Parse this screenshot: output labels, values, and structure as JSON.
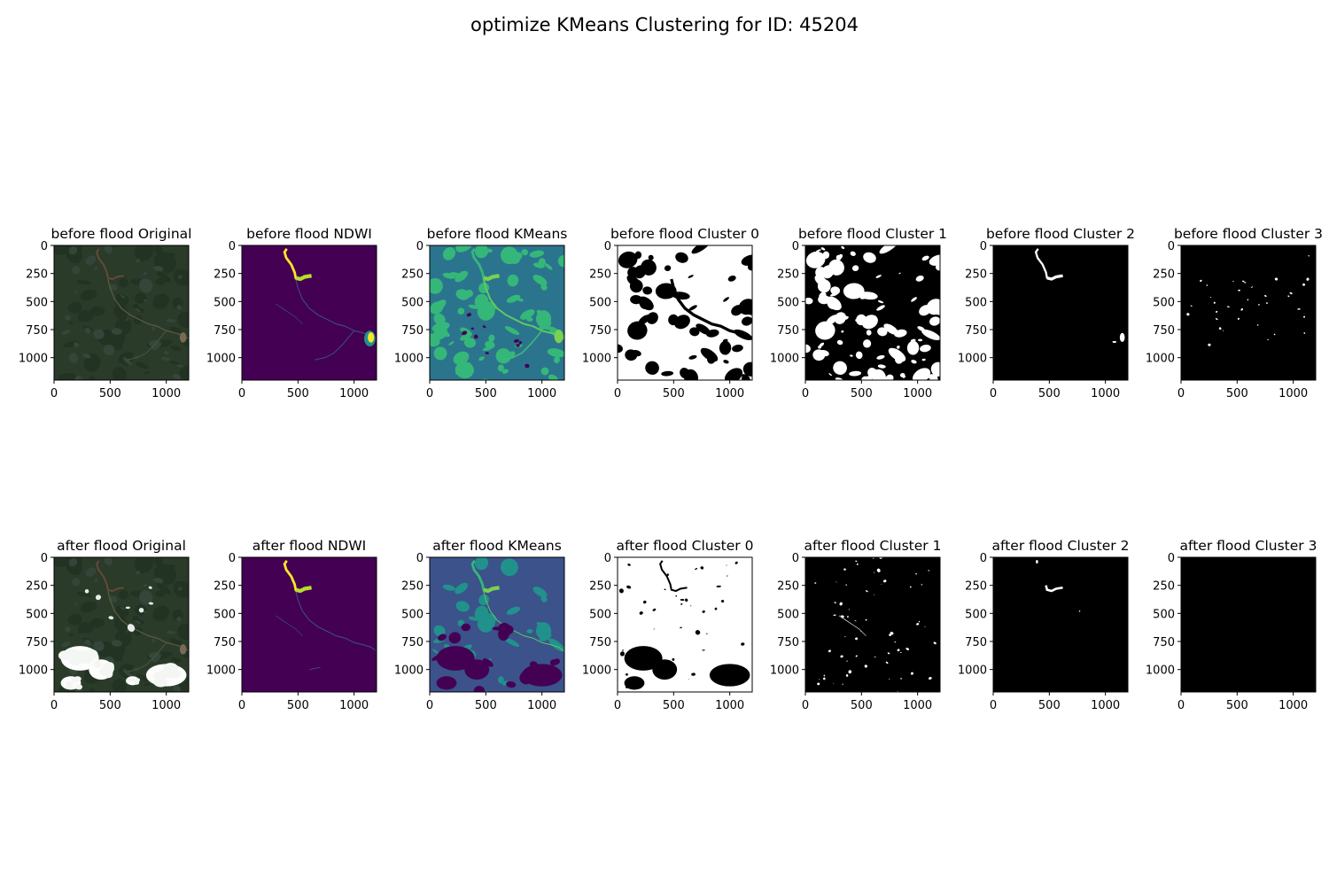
{
  "figure": {
    "title": "optimize KMeans Clustering for ID: 45204"
  },
  "chart_data": {
    "type": "image-grid",
    "title": "optimize KMeans Clustering for ID: 45204",
    "image_size": [
      1200,
      1200
    ],
    "xticks": [
      "0",
      "500",
      "1000"
    ],
    "yticks": [
      "0",
      "250",
      "500",
      "750",
      "1000"
    ],
    "x_tick_values": [
      0,
      500,
      1000
    ],
    "y_tick_values": [
      0,
      250,
      500,
      750,
      1000
    ],
    "xlim": [
      0,
      1200
    ],
    "ylim": [
      1200,
      0
    ],
    "colors": {
      "satellite": "#2a3b29",
      "viridis_low": "#440154",
      "viridis_mid": "#31688e",
      "viridis_green": "#35b779",
      "viridis_high": "#fde725",
      "mask_on": "#ffffff",
      "mask_off": "#000000"
    },
    "rows": [
      {
        "label": "before flood",
        "panels": [
          {
            "title": "before flood Original",
            "kind": "rgb",
            "variant": "before"
          },
          {
            "title": "before flood NDWI",
            "kind": "ndwi",
            "variant": "before"
          },
          {
            "title": "before flood KMeans",
            "kind": "kmeans",
            "variant": "before"
          },
          {
            "title": "before flood Cluster 0",
            "kind": "mask",
            "variant": "c0b"
          },
          {
            "title": "before flood Cluster 1",
            "kind": "mask",
            "variant": "c1b"
          },
          {
            "title": "before flood Cluster 2",
            "kind": "mask",
            "variant": "c2b"
          },
          {
            "title": "before flood Cluster 3",
            "kind": "mask",
            "variant": "c3b"
          }
        ]
      },
      {
        "label": "after flood",
        "panels": [
          {
            "title": "after flood Original",
            "kind": "rgb",
            "variant": "after"
          },
          {
            "title": "after flood NDWI",
            "kind": "ndwi",
            "variant": "after"
          },
          {
            "title": "after flood KMeans",
            "kind": "kmeans",
            "variant": "after"
          },
          {
            "title": "after flood Cluster 0",
            "kind": "mask",
            "variant": "c0a"
          },
          {
            "title": "after flood Cluster 1",
            "kind": "mask",
            "variant": "c1a"
          },
          {
            "title": "after flood Cluster 2",
            "kind": "mask",
            "variant": "c2a"
          },
          {
            "title": "after flood Cluster 3",
            "kind": "mask",
            "variant": "c3a"
          }
        ]
      }
    ]
  }
}
